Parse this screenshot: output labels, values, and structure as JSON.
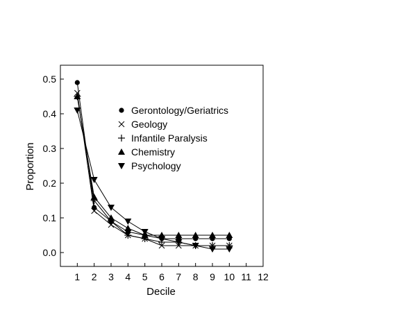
{
  "chart_data": {
    "type": "line",
    "title": "",
    "xlabel": "Decile",
    "ylabel": "Proportion",
    "xlim": [
      0,
      12
    ],
    "ylim": [
      -0.04,
      0.54
    ],
    "x_ticks": [
      "1",
      "2",
      "3",
      "4",
      "5",
      "6",
      "7",
      "8",
      "9",
      "10",
      "11",
      "12"
    ],
    "y_ticks": [
      "0.0",
      "0.1",
      "0.2",
      "0.3",
      "0.4",
      "0.5"
    ],
    "grid": false,
    "legend_position": "upper-right-inside",
    "x": [
      1,
      2,
      3,
      4,
      5,
      6,
      7,
      8,
      9,
      10
    ],
    "series": [
      {
        "name": "Gerontology/Geriatrics",
        "marker": "circle",
        "values": [
          0.49,
          0.13,
          0.09,
          0.06,
          0.05,
          0.04,
          0.04,
          0.04,
          0.04,
          0.04
        ]
      },
      {
        "name": "Geology",
        "marker": "x",
        "values": [
          0.46,
          0.12,
          0.08,
          0.05,
          0.04,
          0.02,
          0.02,
          0.02,
          0.02,
          0.02
        ]
      },
      {
        "name": "Infantile Paralysis",
        "marker": "plus",
        "values": [
          0.45,
          0.15,
          0.09,
          0.05,
          0.04,
          0.03,
          0.03,
          0.02,
          0.02,
          0.02
        ]
      },
      {
        "name": "Chemistry",
        "marker": "triangle-up",
        "values": [
          0.45,
          0.16,
          0.1,
          0.07,
          0.05,
          0.05,
          0.05,
          0.05,
          0.05,
          0.05
        ]
      },
      {
        "name": "Psychology",
        "marker": "triangle-down",
        "values": [
          0.41,
          0.21,
          0.13,
          0.09,
          0.06,
          0.04,
          0.03,
          0.02,
          0.01,
          0.01
        ]
      }
    ]
  }
}
